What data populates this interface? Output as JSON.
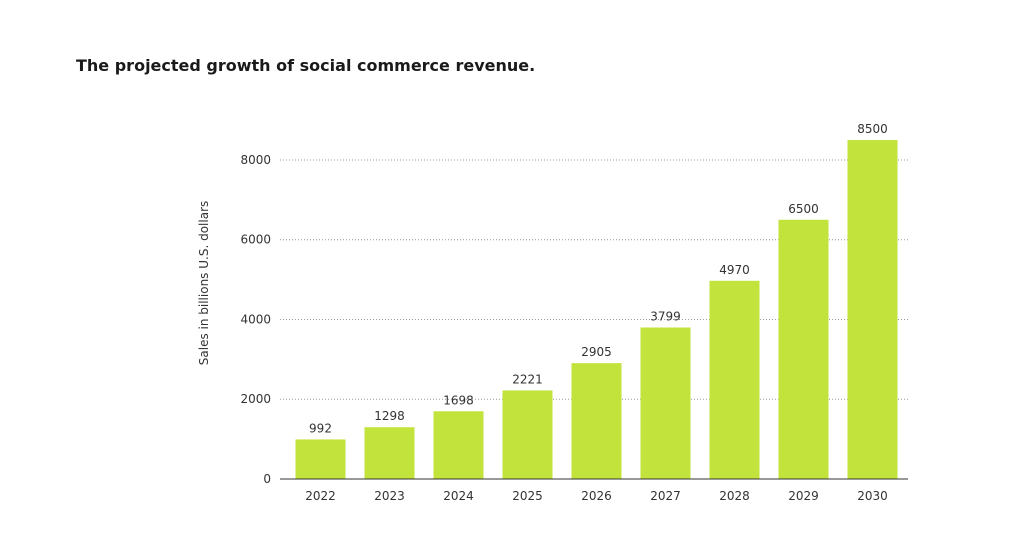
{
  "title": "The projected growth of social commerce revenue.",
  "chart_data": {
    "type": "bar",
    "title": "The projected growth of social commerce revenue.",
    "xlabel": "",
    "ylabel": "Sales in billions U.S. dollars",
    "categories": [
      "2022",
      "2023",
      "2024",
      "2025",
      "2026",
      "2027",
      "2028",
      "2029",
      "2030"
    ],
    "values": [
      992,
      1298,
      1698,
      2221,
      2905,
      3799,
      4970,
      6500,
      8500
    ],
    "data_labels": [
      "992",
      "1298",
      "1698",
      "2221",
      "2905",
      "3799",
      "4970",
      "6500",
      "8500"
    ],
    "yticks": [
      0,
      2000,
      4000,
      6000,
      8000
    ],
    "ytick_labels": [
      "0",
      "2000",
      "4000",
      "6000",
      "8000"
    ],
    "ylim": [
      0,
      8500
    ],
    "grid": "horizontal dotted",
    "legend": "none",
    "colors": {
      "bar": "#c1e33b",
      "grid": "#999999",
      "axis": "#333333",
      "text": "#333333"
    }
  }
}
